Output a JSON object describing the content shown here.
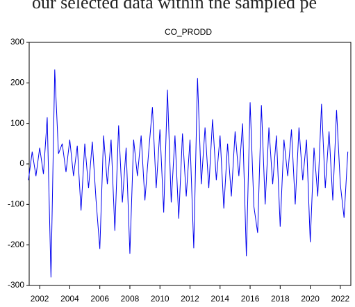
{
  "header_text": "our selected data within the sampled pe",
  "chart_data": {
    "type": "line",
    "title": "CO_PRODD",
    "x": [
      2001.25,
      2001.5,
      2001.75,
      2002.0,
      2002.25,
      2002.5,
      2002.75,
      2003.0,
      2003.25,
      2003.5,
      2003.75,
      2004.0,
      2004.25,
      2004.5,
      2004.75,
      2005.0,
      2005.25,
      2005.5,
      2005.75,
      2006.0,
      2006.25,
      2006.5,
      2006.75,
      2007.0,
      2007.25,
      2007.5,
      2007.75,
      2008.0,
      2008.25,
      2008.5,
      2008.75,
      2009.0,
      2009.25,
      2009.5,
      2009.75,
      2010.0,
      2010.25,
      2010.5,
      2010.75,
      2011.0,
      2011.25,
      2011.5,
      2011.75,
      2012.0,
      2012.25,
      2012.5,
      2012.75,
      2013.0,
      2013.25,
      2013.5,
      2013.75,
      2014.0,
      2014.25,
      2014.5,
      2014.75,
      2015.0,
      2015.25,
      2015.5,
      2015.75,
      2016.0,
      2016.25,
      2016.5,
      2016.75,
      2017.0,
      2017.25,
      2017.5,
      2017.75,
      2018.0,
      2018.25,
      2018.5,
      2018.75,
      2019.0,
      2019.25,
      2019.5,
      2019.75,
      2020.0,
      2020.25,
      2020.5,
      2020.75,
      2021.0,
      2021.25,
      2021.5,
      2021.75,
      2022.0,
      2022.25,
      2022.5
    ],
    "series": [
      {
        "name": "CO_PRODD",
        "color": "#0000ee",
        "values": [
          -40,
          30,
          -30,
          40,
          -25,
          115,
          -280,
          233,
          25,
          50,
          -20,
          60,
          -30,
          45,
          -115,
          50,
          -60,
          55,
          -90,
          -210,
          70,
          -50,
          60,
          -165,
          95,
          -95,
          40,
          -222,
          60,
          -30,
          70,
          -90,
          30,
          140,
          -60,
          85,
          -120,
          183,
          -95,
          70,
          -135,
          75,
          -80,
          60,
          -208,
          212,
          -50,
          90,
          -60,
          110,
          -40,
          70,
          -110,
          50,
          -80,
          80,
          -30,
          100,
          -228,
          152,
          -105,
          -170,
          145,
          -100,
          90,
          -50,
          70,
          -155,
          60,
          -30,
          85,
          -100,
          90,
          -40,
          60,
          -193,
          40,
          -80,
          148,
          -60,
          80,
          -90,
          133,
          -50,
          -133,
          30
        ]
      }
    ],
    "xlim": [
      2001.3,
      2022.7
    ],
    "xticks": [
      2002,
      2004,
      2006,
      2008,
      2010,
      2012,
      2014,
      2016,
      2018,
      2020,
      2022
    ],
    "ylim": [
      -300,
      300
    ],
    "yticks": [
      -300,
      -200,
      -100,
      0,
      100,
      200,
      300
    ]
  }
}
